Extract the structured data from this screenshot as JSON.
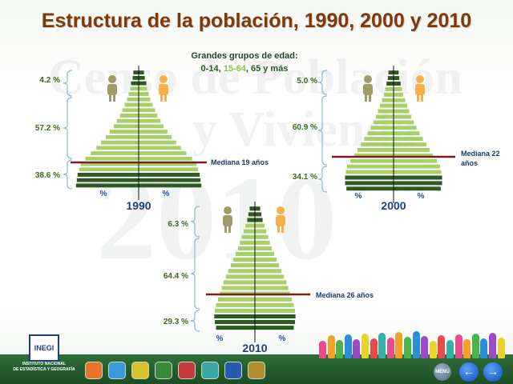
{
  "title": "Estructura de la población, 1990, 2000 y 2010",
  "watermark": {
    "line1": "Censo de Población",
    "line2": "y Vivienda",
    "line3": "2010"
  },
  "legend": {
    "line1": "Grandes grupos de edad:",
    "group1": "0-14",
    "group2": "15-64",
    "group3": "65 y más"
  },
  "colors": {
    "dark_green": "#2e5a22",
    "light_green": "#a7cf6b",
    "median_line": "#7a1d1d",
    "title": "#7a3a12",
    "bottom_bar": "#1c4d24"
  },
  "footer": {
    "logo_text": "INEGI",
    "org_line1": "INSTITUTO NACIONAL",
    "org_line2": "DE ESTADÍSTICA Y GEOGRAFÍA",
    "menu_label": "MENÚ",
    "nav_icons": [
      "people-icon",
      "person-icon",
      "group-icon",
      "family-icon",
      "house-icon",
      "building-icon",
      "map-icon",
      "document-icon"
    ],
    "prev_arrow": "←",
    "next_arrow": "→"
  },
  "chart_data": [
    {
      "type": "bar",
      "year_label": "1990",
      "axis_label_left": "%",
      "axis_label_right": "%",
      "groups": [
        {
          "label": "38.6 %",
          "value": 38.6
        },
        {
          "label": "57.2 %",
          "value": 57.2
        },
        {
          "label": "4.2 %",
          "value": 4.2
        }
      ],
      "median_label": "Mediana 19 años",
      "median_age": 19,
      "bar_widths": [
        0.8,
        0.79,
        0.78,
        0.76,
        0.74,
        0.68,
        0.61,
        0.54,
        0.48,
        0.42,
        0.37,
        0.32,
        0.28,
        0.24,
        0.21,
        0.18,
        0.15,
        0.13,
        0.11,
        0.1,
        0.08,
        0.07
      ]
    },
    {
      "type": "bar",
      "year_label": "2000",
      "axis_label_left": "%",
      "axis_label_right": "%",
      "groups": [
        {
          "label": "34.1 %",
          "value": 34.1
        },
        {
          "label": "60.9 %",
          "value": 60.9
        },
        {
          "label": "5.0 %",
          "value": 5.0
        }
      ],
      "median_label_line1": "Mediana 22",
      "median_label_line2": "años",
      "median_age": 22,
      "bar_widths": [
        0.72,
        0.74,
        0.74,
        0.73,
        0.71,
        0.66,
        0.6,
        0.55,
        0.5,
        0.45,
        0.4,
        0.35,
        0.31,
        0.27,
        0.24,
        0.21,
        0.18,
        0.15,
        0.13,
        0.11,
        0.09,
        0.08
      ]
    },
    {
      "type": "bar",
      "year_label": "2010",
      "axis_label_left": "%",
      "axis_label_right": "%",
      "groups": [
        {
          "label": "29.3 %",
          "value": 29.3
        },
        {
          "label": "64.4 %",
          "value": 64.4
        },
        {
          "label": "6.3 %",
          "value": 6.3
        }
      ],
      "median_label": "Mediana 26 años",
      "median_age": 26,
      "bar_widths": [
        0.64,
        0.66,
        0.67,
        0.66,
        0.64,
        0.61,
        0.58,
        0.55,
        0.52,
        0.48,
        0.44,
        0.4,
        0.36,
        0.32,
        0.28,
        0.25,
        0.22,
        0.19,
        0.16,
        0.13,
        0.11,
        0.09
      ]
    }
  ]
}
